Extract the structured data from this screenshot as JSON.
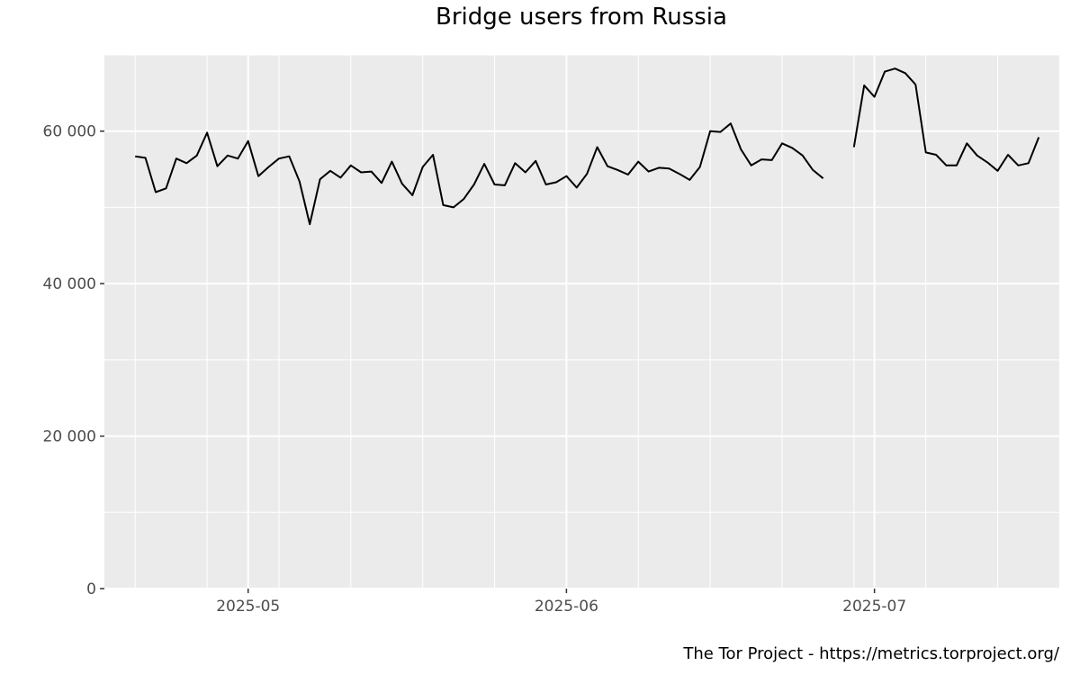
{
  "chart_data": {
    "type": "line",
    "title": "Bridge users from Russia",
    "xlabel": "",
    "ylabel": "",
    "grid": true,
    "ylim": [
      0,
      70000
    ],
    "xlim": [
      "2025-04-17",
      "2025-07-19"
    ],
    "y_ticks": [
      {
        "value": 0,
        "label": "0"
      },
      {
        "value": 20000,
        "label": "20 000"
      },
      {
        "value": 40000,
        "label": "40 000"
      },
      {
        "value": 60000,
        "label": "60 000"
      }
    ],
    "x_ticks": [
      {
        "date": "2025-05-01",
        "label": "2025-05"
      },
      {
        "date": "2025-06-01",
        "label": "2025-06"
      },
      {
        "date": "2025-07-01",
        "label": "2025-07"
      }
    ],
    "series": [
      {
        "color": "#000000",
        "points": [
          [
            "2025-04-20",
            56700
          ],
          [
            "2025-04-21",
            56500
          ],
          [
            "2025-04-22",
            52000
          ],
          [
            "2025-04-23",
            52500
          ],
          [
            "2025-04-24",
            56400
          ],
          [
            "2025-04-25",
            55800
          ],
          [
            "2025-04-26",
            56800
          ],
          [
            "2025-04-27",
            59800
          ],
          [
            "2025-04-28",
            55400
          ],
          [
            "2025-04-29",
            56800
          ],
          [
            "2025-04-30",
            56400
          ],
          [
            "2025-05-01",
            58700
          ],
          [
            "2025-05-02",
            54100
          ],
          [
            "2025-05-03",
            55300
          ],
          [
            "2025-05-04",
            56400
          ],
          [
            "2025-05-05",
            56700
          ],
          [
            "2025-05-06",
            53400
          ],
          [
            "2025-05-07",
            47800
          ],
          [
            "2025-05-08",
            53700
          ],
          [
            "2025-05-09",
            54800
          ],
          [
            "2025-05-10",
            53900
          ],
          [
            "2025-05-11",
            55500
          ],
          [
            "2025-05-12",
            54600
          ],
          [
            "2025-05-13",
            54700
          ],
          [
            "2025-05-14",
            53200
          ],
          [
            "2025-05-15",
            56000
          ],
          [
            "2025-05-16",
            53100
          ],
          [
            "2025-05-17",
            51600
          ],
          [
            "2025-05-18",
            55300
          ],
          [
            "2025-05-19",
            56900
          ],
          [
            "2025-05-20",
            50300
          ],
          [
            "2025-05-21",
            50000
          ],
          [
            "2025-05-22",
            51100
          ],
          [
            "2025-05-23",
            53000
          ],
          [
            "2025-05-24",
            55700
          ],
          [
            "2025-05-25",
            53000
          ],
          [
            "2025-05-26",
            52900
          ],
          [
            "2025-05-27",
            55800
          ],
          [
            "2025-05-28",
            54600
          ],
          [
            "2025-05-29",
            56100
          ],
          [
            "2025-05-30",
            53000
          ],
          [
            "2025-05-31",
            53300
          ],
          [
            "2025-06-01",
            54100
          ],
          [
            "2025-06-02",
            52600
          ],
          [
            "2025-06-03",
            54400
          ],
          [
            "2025-06-04",
            57900
          ],
          [
            "2025-06-05",
            55400
          ],
          [
            "2025-06-06",
            54900
          ],
          [
            "2025-06-07",
            54300
          ],
          [
            "2025-06-08",
            56000
          ],
          [
            "2025-06-09",
            54700
          ],
          [
            "2025-06-10",
            55200
          ],
          [
            "2025-06-11",
            55100
          ],
          [
            "2025-06-12",
            54400
          ],
          [
            "2025-06-13",
            53600
          ],
          [
            "2025-06-14",
            55300
          ],
          [
            "2025-06-15",
            60000
          ],
          [
            "2025-06-16",
            59900
          ],
          [
            "2025-06-17",
            61000
          ],
          [
            "2025-06-18",
            57600
          ],
          [
            "2025-06-19",
            55500
          ],
          [
            "2025-06-20",
            56300
          ],
          [
            "2025-06-21",
            56200
          ],
          [
            "2025-06-22",
            58400
          ],
          [
            "2025-06-23",
            57800
          ],
          [
            "2025-06-24",
            56800
          ],
          [
            "2025-06-25",
            54900
          ],
          [
            "2025-06-26",
            53800
          ],
          [
            "2025-06-27",
            null
          ],
          [
            "2025-06-28",
            null
          ],
          [
            "2025-06-29",
            57900
          ],
          [
            "2025-06-30",
            66000
          ],
          [
            "2025-07-01",
            64500
          ],
          [
            "2025-07-02",
            67800
          ],
          [
            "2025-07-03",
            68200
          ],
          [
            "2025-07-04",
            67600
          ],
          [
            "2025-07-05",
            66100
          ],
          [
            "2025-07-06",
            57200
          ],
          [
            "2025-07-07",
            56900
          ],
          [
            "2025-07-08",
            55500
          ],
          [
            "2025-07-09",
            55500
          ],
          [
            "2025-07-10",
            58400
          ],
          [
            "2025-07-11",
            56800
          ],
          [
            "2025-07-12",
            55900
          ],
          [
            "2025-07-13",
            54800
          ],
          [
            "2025-07-14",
            56900
          ],
          [
            "2025-07-15",
            55500
          ],
          [
            "2025-07-16",
            55800
          ],
          [
            "2025-07-17",
            59200
          ]
        ]
      }
    ]
  },
  "footer": {
    "credit": "The Tor Project - https://metrics.torproject.org/"
  }
}
